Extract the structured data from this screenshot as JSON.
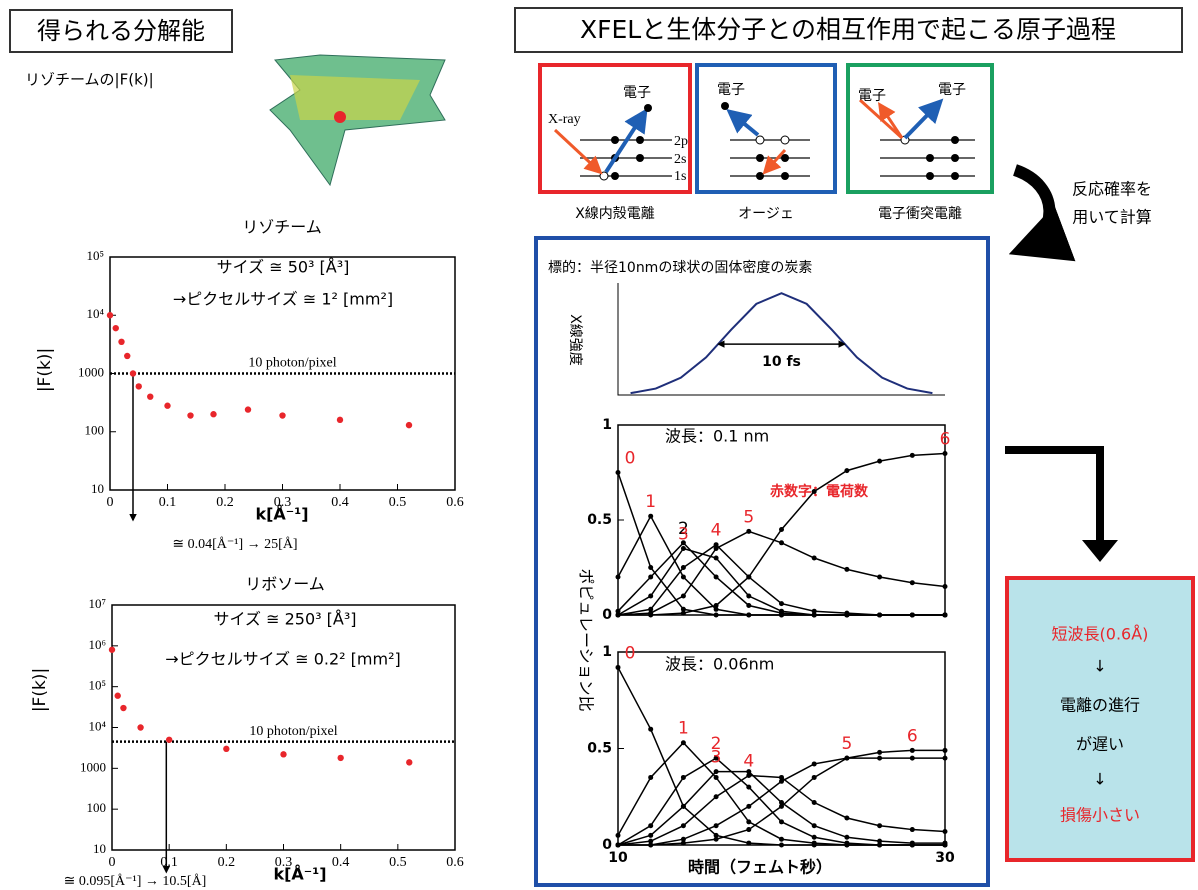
{
  "header": {
    "left": "得られる分解能",
    "right": "XFELと生体分子との相互作用で起こる原子過程"
  },
  "structure_label": "リゾチームの|F(k)|",
  "processes": [
    {
      "label": "X線内殻電離",
      "electron": "電子",
      "photon": "X-ray",
      "levels": [
        "2p",
        "2s",
        "1s"
      ]
    },
    {
      "label": "オージェ",
      "electron": "電子"
    },
    {
      "label": "電子衝突電離",
      "electrons": [
        "電子",
        "電子"
      ]
    }
  ],
  "method_note": [
    "反応確率を",
    "用いて計算"
  ],
  "target": "標的：半径10nmの球状の固体密度の炭素",
  "pulse_axis_label": "X線強度",
  "population_axis_label": "ポピュレーション比",
  "result": {
    "lines": [
      "短波長(0.6Å)",
      "↓",
      "電離の進行",
      "が遅い",
      "↓",
      "損傷小さい"
    ]
  },
  "chart_data": [
    {
      "type": "scatter",
      "title": "リゾチーム",
      "y_label": "|F(k)|",
      "x_label": "k[Å⁻¹]",
      "log_y": true,
      "color": "#e8262b",
      "x": [
        0,
        0.01,
        0.02,
        0.03,
        0.04,
        0.05,
        0.07,
        0.1,
        0.14,
        0.18,
        0.24,
        0.3,
        0.4,
        0.52
      ],
      "values": [
        10000,
        6000,
        3500,
        2000,
        1000,
        600,
        400,
        280,
        190,
        200,
        240,
        190,
        160,
        130
      ],
      "xlim": [
        0,
        0.6
      ],
      "xticks": [
        0,
        0.1,
        0.2,
        0.3,
        0.4,
        0.5,
        0.6
      ],
      "ylim": [
        10,
        100000
      ],
      "yticks": [
        10,
        100,
        1000,
        {
          "value": 10000,
          "label": "10⁴"
        },
        {
          "value": 100000,
          "label": "10⁵"
        }
      ],
      "annotations": [
        "サイズ ≅ 50³ [Å³]",
        "→ピクセルサイズ ≅ 1² [mm²]"
      ],
      "hline": {
        "value": 1000,
        "label": "10 photon/pixel"
      },
      "vline": {
        "value": 0.04,
        "label": "≅ 0.04[Å⁻¹] → 25[Å]"
      }
    },
    {
      "type": "scatter",
      "title": "リボソーム",
      "y_label": "|F(k)|",
      "x_label": "k[Å⁻¹]",
      "log_y": true,
      "color": "#e8262b",
      "x": [
        0,
        0.01,
        0.02,
        0.05,
        0.1,
        0.2,
        0.3,
        0.4,
        0.52
      ],
      "values": [
        800000,
        60000,
        30000,
        10000,
        5000,
        3000,
        2200,
        1800,
        1400
      ],
      "xlim": [
        0,
        0.6
      ],
      "xticks": [
        0,
        0.1,
        0.2,
        0.3,
        0.4,
        0.5,
        0.6
      ],
      "ylim": [
        10,
        10000000
      ],
      "yticks": [
        10,
        100,
        1000,
        {
          "value": 10000,
          "label": "10⁴"
        },
        {
          "value": 100000,
          "label": "10⁵"
        },
        {
          "value": 1000000,
          "label": "10⁶"
        },
        {
          "value": 10000000,
          "label": "10⁷"
        }
      ],
      "annotations": [
        "サイズ ≅ 250³ [Å³]",
        "→ピクセルサイズ ≅ 0.2² [mm²]"
      ],
      "hline": {
        "value": 4500,
        "label": "10 photon/pixel"
      },
      "vline": {
        "value": 0.095,
        "label": "≅ 0.095[Å⁻¹] → 10.5[Å]"
      }
    },
    {
      "type": "line",
      "color": "#1f2f7a",
      "x": [
        1,
        3,
        5,
        7,
        9,
        11,
        13,
        15,
        17,
        19,
        21,
        23,
        25
      ],
      "values": [
        0.018,
        0.063,
        0.17,
        0.369,
        0.641,
        0.895,
        1,
        0.895,
        0.641,
        0.369,
        0.17,
        0.063,
        0.018
      ],
      "xlim": [
        0,
        26
      ],
      "ylim": [
        0,
        1.1
      ],
      "span": {
        "x": [
          8,
          18
        ],
        "y": 0.5,
        "label": "10 fs"
      }
    },
    {
      "type": "multiline",
      "annotations": [
        "波長：0.1 nm",
        "赤数字：電荷数"
      ],
      "x": [
        10,
        12,
        14,
        16,
        18,
        20,
        22,
        24,
        26,
        28,
        30
      ],
      "xlim": [
        10,
        30
      ],
      "ylim": [
        0,
        1
      ],
      "yticks": [
        0,
        0.5,
        1
      ],
      "series": [
        {
          "name": "0",
          "color": "#000000",
          "label_color": "#e8262b",
          "values": [
            0.75,
            0.25,
            0.03,
            0,
            0,
            0,
            0,
            0,
            0,
            0,
            0
          ]
        },
        {
          "name": "1",
          "color": "#000000",
          "label_color": "#e8262b",
          "values": [
            0.2,
            0.52,
            0.2,
            0.03,
            0,
            0,
            0,
            0,
            0,
            0,
            0
          ]
        },
        {
          "name": "2",
          "color": "#000000",
          "label_color": "#000000",
          "values": [
            0.02,
            0.2,
            0.38,
            0.2,
            0.05,
            0.01,
            0,
            0,
            0,
            0,
            0
          ]
        },
        {
          "name": "3",
          "color": "#000000",
          "label_color": "#e8262b",
          "values": [
            0,
            0.1,
            0.35,
            0.3,
            0.1,
            0.02,
            0,
            0,
            0,
            0,
            0
          ]
        },
        {
          "name": "4",
          "color": "#000000",
          "label_color": "#e8262b",
          "values": [
            0,
            0.03,
            0.25,
            0.37,
            0.2,
            0.06,
            0.02,
            0.01,
            0,
            0,
            0
          ]
        },
        {
          "name": "5",
          "color": "#000000",
          "label_color": "#e8262b",
          "values": [
            0,
            0.01,
            0.1,
            0.35,
            0.44,
            0.38,
            0.3,
            0.24,
            0.2,
            0.17,
            0.15
          ]
        },
        {
          "name": "6",
          "color": "#000000",
          "label_color": "#e8262b",
          "values": [
            0,
            0,
            0.01,
            0.05,
            0.2,
            0.45,
            0.65,
            0.76,
            0.81,
            0.84,
            0.85
          ]
        }
      ]
    },
    {
      "type": "multiline",
      "annotations": [
        "波長：0.06nm"
      ],
      "x_label": "時間（フェムト秒）",
      "x": [
        10,
        12,
        14,
        16,
        18,
        20,
        22,
        24,
        26,
        28,
        30
      ],
      "xlim": [
        10,
        30
      ],
      "xticks": [
        10,
        30
      ],
      "ylim": [
        0,
        1
      ],
      "yticks": [
        0,
        0.5,
        1
      ],
      "series": [
        {
          "name": "0",
          "color": "#000000",
          "label_color": "#e8262b",
          "values": [
            0.92,
            0.6,
            0.2,
            0.05,
            0.01,
            0,
            0,
            0,
            0,
            0,
            0
          ]
        },
        {
          "name": "1",
          "color": "#000000",
          "label_color": "#e8262b",
          "values": [
            0.05,
            0.35,
            0.53,
            0.35,
            0.12,
            0.03,
            0.01,
            0,
            0,
            0,
            0
          ]
        },
        {
          "name": "2",
          "color": "#000000",
          "label_color": "#e8262b",
          "values": [
            0,
            0.1,
            0.35,
            0.45,
            0.3,
            0.12,
            0.04,
            0.01,
            0,
            0,
            0
          ]
        },
        {
          "name": "3",
          "color": "#000000",
          "label_color": "#e8262b",
          "values": [
            0,
            0.05,
            0.2,
            0.38,
            0.38,
            0.22,
            0.1,
            0.04,
            0.02,
            0.01,
            0.01
          ]
        },
        {
          "name": "4",
          "color": "#000000",
          "label_color": "#e8262b",
          "values": [
            0,
            0.02,
            0.1,
            0.25,
            0.36,
            0.35,
            0.22,
            0.14,
            0.1,
            0.08,
            0.07
          ]
        },
        {
          "name": "5",
          "color": "#000000",
          "label_color": "#e8262b",
          "values": [
            0,
            0,
            0.03,
            0.1,
            0.2,
            0.33,
            0.42,
            0.45,
            0.45,
            0.45,
            0.45
          ]
        },
        {
          "name": "6",
          "color": "#000000",
          "label_color": "#e8262b",
          "values": [
            0,
            0,
            0.01,
            0.03,
            0.08,
            0.2,
            0.35,
            0.45,
            0.48,
            0.49,
            0.49
          ]
        }
      ]
    }
  ]
}
